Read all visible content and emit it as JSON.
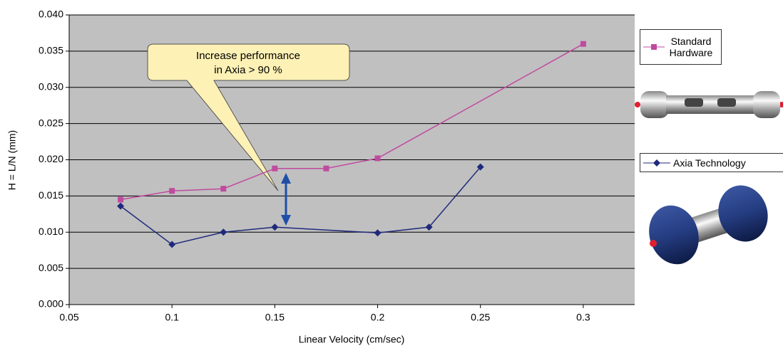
{
  "chart_data": {
    "type": "line",
    "x_label": "Linear Velocity (cm/sec)",
    "y_label": "H = L/N (mm)",
    "annotation": [
      "Increase performance",
      "in Axia > 90 %"
    ],
    "xlim": [
      0.05,
      0.325
    ],
    "xticks": [
      0.05,
      0.1,
      0.15,
      0.2,
      0.25,
      0.3
    ],
    "ylim": [
      0,
      0.04
    ],
    "yticks": [
      {
        "value": 0,
        "label": "0.000"
      },
      {
        "value": 0.005,
        "label": "0.005"
      },
      {
        "value": 0.01,
        "label": "0.010"
      },
      {
        "value": 0.015,
        "label": "0.015"
      },
      {
        "value": 0.02,
        "label": "0.020"
      },
      {
        "value": 0.025,
        "label": "0.025"
      },
      {
        "value": 0.03,
        "label": "0.030"
      },
      {
        "value": 0.035,
        "label": "0.035"
      },
      {
        "value": 0.04,
        "label": "0.040"
      }
    ],
    "grid": true,
    "series": [
      {
        "name": "Standard Hardware",
        "color": "#c04a9f",
        "marker": "square",
        "x": [
          0.075,
          0.1,
          0.125,
          0.15,
          0.175,
          0.2,
          0.3
        ],
        "values": [
          0.0145,
          0.0157,
          0.016,
          0.0188,
          0.0188,
          0.0202,
          0.036
        ]
      },
      {
        "name": "Axia Technology",
        "color": "#1f2a7c",
        "marker": "diamond",
        "x": [
          0.075,
          0.1,
          0.125,
          0.15,
          0.2,
          0.225,
          0.25
        ],
        "values": [
          0.0136,
          0.0083,
          0.01,
          0.0107,
          0.0099,
          0.0107,
          0.019
        ]
      }
    ]
  }
}
